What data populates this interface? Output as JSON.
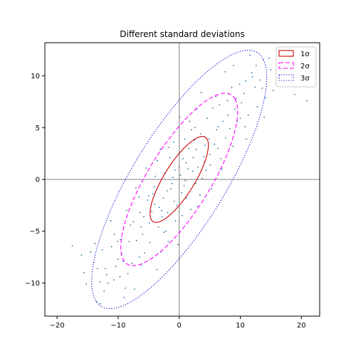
{
  "chart_data": {
    "type": "scatter",
    "title": "Different standard deviations",
    "xlabel": "",
    "ylabel": "",
    "xlim": [
      -22.0,
      23.0
    ],
    "ylim": [
      -13.2,
      13.2
    ],
    "x_ticks": [
      {
        "value": -20,
        "label": "−20"
      },
      {
        "value": -10,
        "label": "−10"
      },
      {
        "value": 0,
        "label": "0"
      },
      {
        "value": 10,
        "label": "10"
      },
      {
        "value": 20,
        "label": "20"
      }
    ],
    "y_ticks": [
      {
        "value": -10,
        "label": "−10"
      },
      {
        "value": -5,
        "label": "−5"
      },
      {
        "value": 0,
        "label": "0"
      },
      {
        "value": 5,
        "label": "5"
      },
      {
        "value": 10,
        "label": "10"
      }
    ],
    "grid": false,
    "reference_lines": {
      "x": 0,
      "y": 0,
      "color": "#808080"
    },
    "legend_position": "top-right",
    "ellipses": [
      {
        "name": "1σ",
        "center": [
          0.0,
          0.0
        ],
        "semi_major": 6.0,
        "semi_minor": 2.0,
        "angle_deg": 40,
        "color": "#cc0000",
        "style": "solid"
      },
      {
        "name": "2σ",
        "center": [
          0.0,
          0.0
        ],
        "semi_major": 12.0,
        "semi_minor": 4.1,
        "angle_deg": 40,
        "color": "#ff00ff",
        "style": "dashed"
      },
      {
        "name": "3σ",
        "center": [
          0.0,
          0.0
        ],
        "semi_major": 18.0,
        "semi_minor": 6.1,
        "angle_deg": 40,
        "color": "#0000cc",
        "style": "dotted"
      }
    ],
    "legend": {
      "entries": [
        {
          "label": "1σ",
          "color": "#cc0000",
          "style": "solid"
        },
        {
          "label": "2σ",
          "color": "#ff00ff",
          "style": "dashed"
        },
        {
          "label": "3σ",
          "color": "#0000cc",
          "style": "dotted"
        }
      ]
    },
    "point_color": "#1f77b4",
    "points": [
      [
        0.2,
        0.4
      ],
      [
        1.1,
        1.6
      ],
      [
        -1.4,
        -0.9
      ],
      [
        2.3,
        2.1
      ],
      [
        -2.6,
        -1.8
      ],
      [
        3.1,
        1.2
      ],
      [
        -3.3,
        -2.7
      ],
      [
        0.8,
        -0.6
      ],
      [
        -0.7,
        0.9
      ],
      [
        4.2,
        3.3
      ],
      [
        -4.5,
        -3.1
      ],
      [
        1.6,
        3.0
      ],
      [
        -1.9,
        -3.2
      ],
      [
        5.0,
        2.4
      ],
      [
        -5.2,
        -2.0
      ],
      [
        2.7,
        -0.4
      ],
      [
        -2.4,
        0.6
      ],
      [
        6.1,
        4.8
      ],
      [
        -6.3,
        -4.6
      ],
      [
        0.3,
        2.7
      ],
      [
        -0.4,
        -2.5
      ],
      [
        3.8,
        0.1
      ],
      [
        -3.9,
        0.3
      ],
      [
        7.2,
        5.6
      ],
      [
        -7.0,
        -5.9
      ],
      [
        1.2,
        -1.8
      ],
      [
        -1.5,
        2.1
      ],
      [
        8.3,
        4.9
      ],
      [
        -8.0,
        -4.4
      ],
      [
        4.6,
        5.9
      ],
      [
        -4.8,
        -6.1
      ],
      [
        9.1,
        6.8
      ],
      [
        -9.4,
        -7.2
      ],
      [
        2.0,
        4.8
      ],
      [
        -2.2,
        -5.0
      ],
      [
        6.8,
        2.0
      ],
      [
        -6.6,
        -1.7
      ],
      [
        10.2,
        7.4
      ],
      [
        -10.0,
        -7.7
      ],
      [
        0.9,
        3.9
      ],
      [
        -0.6,
        -4.0
      ],
      [
        5.5,
        6.9
      ],
      [
        -5.7,
        -7.1
      ],
      [
        11.3,
        6.2
      ],
      [
        -11.1,
        -6.5
      ],
      [
        3.4,
        -1.5
      ],
      [
        -3.6,
        1.8
      ],
      [
        7.9,
        7.6
      ],
      [
        -7.7,
        -8.1
      ],
      [
        12.4,
        8.9
      ],
      [
        -12.1,
        -8.6
      ],
      [
        1.7,
        5.6
      ],
      [
        -1.8,
        -6.0
      ],
      [
        8.8,
        3.2
      ],
      [
        -8.6,
        -3.0
      ],
      [
        13.2,
        9.6
      ],
      [
        -13.0,
        -9.9
      ],
      [
        2.9,
        6.8
      ],
      [
        -3.0,
        -7.0
      ],
      [
        9.9,
        9.2
      ],
      [
        -9.7,
        -9.4
      ],
      [
        14.1,
        7.9
      ],
      [
        -14.0,
        -8.0
      ],
      [
        4.1,
        1.7
      ],
      [
        -4.3,
        -1.4
      ],
      [
        10.8,
        5.1
      ],
      [
        -10.6,
        -5.3
      ],
      [
        15.0,
        10.6
      ],
      [
        -15.2,
        -10.1
      ],
      [
        6.0,
        8.0
      ],
      [
        -6.2,
        -8.3
      ],
      [
        11.9,
        10.3
      ],
      [
        -11.7,
        -10.0
      ],
      [
        16.4,
        9.8
      ],
      [
        -16.0,
        -7.3
      ],
      [
        0.5,
        -3.5
      ],
      [
        -0.9,
        3.6
      ],
      [
        5.3,
        -0.9
      ],
      [
        -5.4,
        1.1
      ],
      [
        12.8,
        7.0
      ],
      [
        -12.6,
        -6.8
      ],
      [
        17.1,
        11.2
      ],
      [
        -13.5,
        -11.8
      ],
      [
        3.6,
        8.4
      ],
      [
        -3.7,
        -8.7
      ],
      [
        18.9,
        8.2
      ],
      [
        -9.0,
        -11.4
      ],
      [
        7.5,
        10.4
      ],
      [
        -7.3,
        -10.6
      ],
      [
        20.9,
        7.6
      ],
      [
        -17.5,
        -6.4
      ],
      [
        1.4,
        1.0
      ],
      [
        -1.2,
        -0.4
      ],
      [
        2.5,
        3.8
      ],
      [
        -2.8,
        -3.6
      ],
      [
        4.9,
        3.9
      ],
      [
        -4.9,
        -4.2
      ],
      [
        6.4,
        5.1
      ],
      [
        -6.0,
        -5.3
      ],
      [
        8.0,
        6.2
      ],
      [
        -8.2,
        -6.0
      ],
      [
        9.5,
        5.6
      ],
      [
        -9.6,
        -5.8
      ],
      [
        10.6,
        8.3
      ],
      [
        -10.4,
        -8.4
      ],
      [
        12.0,
        9.9
      ],
      [
        -11.9,
        -9.2
      ],
      [
        13.6,
        8.8
      ],
      [
        -13.4,
        -8.6
      ],
      [
        14.7,
        11.7
      ],
      [
        -14.5,
        -7.0
      ],
      [
        0.1,
        6.0
      ],
      [
        -0.2,
        -6.3
      ],
      [
        3.0,
        -2.6
      ],
      [
        -3.1,
        2.9
      ],
      [
        7.0,
        1.0
      ],
      [
        -7.1,
        -0.8
      ],
      [
        8.9,
        11.0
      ],
      [
        -8.8,
        -10.5
      ],
      [
        11.0,
        3.9
      ],
      [
        -11.2,
        -4.0
      ],
      [
        16.0,
        12.5
      ],
      [
        -5.8,
        -3.6
      ],
      [
        5.8,
        3.4
      ],
      [
        2.2,
        0.8
      ],
      [
        -2.0,
        -1.1
      ],
      [
        0.6,
        2.0
      ],
      [
        -0.8,
        -2.1
      ],
      [
        3.5,
        4.4
      ],
      [
        -3.4,
        -4.6
      ],
      [
        4.4,
        0.9
      ],
      [
        -4.1,
        -0.7
      ],
      [
        1.9,
        -2.9
      ],
      [
        -1.7,
        3.1
      ],
      [
        6.6,
        7.2
      ],
      [
        -6.5,
        -7.5
      ],
      [
        9.3,
        7.8
      ],
      [
        -9.2,
        -7.9
      ],
      [
        11.6,
        12.0
      ],
      [
        -12.9,
        -12.0
      ],
      [
        13.9,
        6.0
      ],
      [
        -13.8,
        -6.2
      ],
      [
        15.4,
        8.6
      ],
      [
        -15.6,
        -9.0
      ],
      [
        2.6,
        5.0
      ],
      [
        -2.5,
        -5.1
      ],
      [
        5.1,
        1.4
      ],
      [
        -5.0,
        -1.6
      ],
      [
        7.6,
        4.0
      ],
      [
        -7.5,
        -4.1
      ],
      [
        10.0,
        5.9
      ],
      [
        -10.1,
        -6.0
      ],
      [
        12.6,
        11.0
      ],
      [
        -12.3,
        -10.8
      ],
      [
        0.0,
        1.2
      ],
      [
        0.4,
        -1.3
      ],
      [
        -1.0,
        0.2
      ],
      [
        1.0,
        -0.1
      ],
      [
        2.8,
        2.9
      ],
      [
        -2.9,
        -3.0
      ],
      [
        4.0,
        2.2
      ],
      [
        -4.0,
        -2.4
      ],
      [
        6.3,
        3.0
      ],
      [
        -6.4,
        -3.2
      ],
      [
        8.6,
        8.9
      ],
      [
        -8.4,
        -9.1
      ],
      [
        10.9,
        9.5
      ],
      [
        -10.7,
        -9.7
      ]
    ]
  }
}
